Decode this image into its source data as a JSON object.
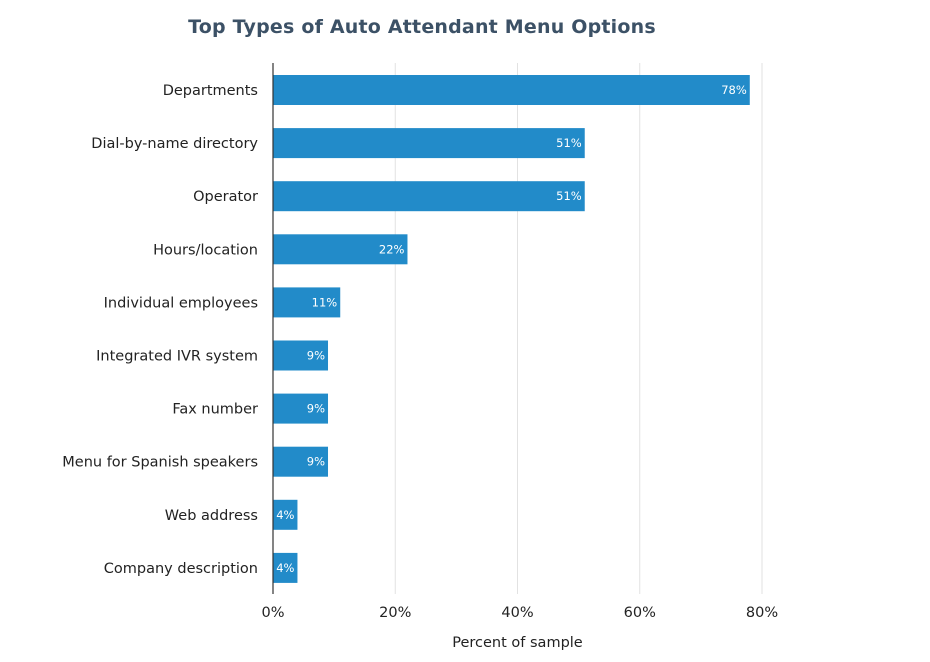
{
  "chart_data": {
    "type": "bar",
    "orientation": "horizontal",
    "title": "Top Types of Auto Attendant Menu Options",
    "xlabel": "Percent of sample",
    "ylabel": "",
    "xlim": [
      0,
      80
    ],
    "xticks": [
      0,
      20,
      40,
      60,
      80
    ],
    "xtick_labels": [
      "0%",
      "20%",
      "40%",
      "60%",
      "80%"
    ],
    "grid": true,
    "legend": "none",
    "bar_color": "#228bc9",
    "categories": [
      "Departments",
      "Dial-by-name directory",
      "Operator",
      "Hours/location",
      "Individual employees",
      "Integrated IVR system",
      "Fax number",
      "Menu for Spanish speakers",
      "Web address",
      "Company description"
    ],
    "values": [
      78,
      51,
      51,
      22,
      11,
      9,
      9,
      9,
      4,
      4
    ],
    "value_labels": [
      "78%",
      "51%",
      "51%",
      "22%",
      "11%",
      "9%",
      "9%",
      "9%",
      "4%",
      "4%"
    ]
  }
}
